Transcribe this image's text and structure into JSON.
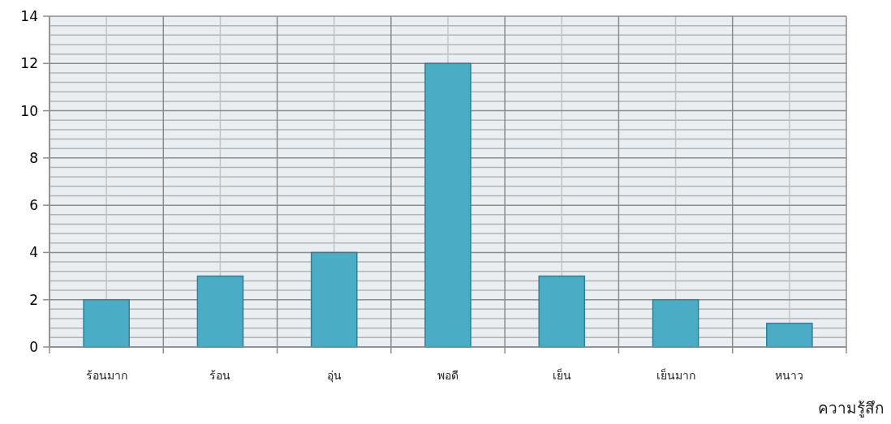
{
  "chart_data": {
    "type": "bar",
    "categories": [
      "ร้อนมาก",
      "ร้อน",
      "อุ่น",
      "พอดี",
      "เย็น",
      "เย็นมาก",
      "หนาว"
    ],
    "values": [
      2,
      3,
      4,
      12,
      3,
      2,
      1
    ],
    "color": "#4bacc6",
    "ylim": [
      0,
      14
    ],
    "yticks": [
      0,
      2,
      4,
      6,
      8,
      10,
      12,
      14
    ],
    "grid": true,
    "xlabel": "ความรู้สึก"
  }
}
